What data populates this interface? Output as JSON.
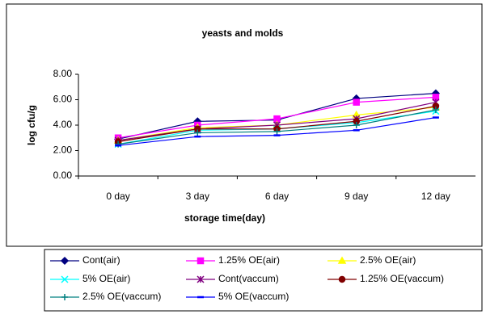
{
  "chart_data": {
    "type": "line",
    "title": "yeasts and molds",
    "x_label": "storage time(day)",
    "y_label": "log cfu/g",
    "categories": [
      "0 day",
      "3 day",
      "6 day",
      "9 day",
      "12 day"
    ],
    "ylim": [
      0,
      8
    ],
    "yticks": [
      {
        "value": 0,
        "label": "0.00"
      },
      {
        "value": 2,
        "label": "2.00"
      },
      {
        "value": 4,
        "label": "4.00"
      },
      {
        "value": 6,
        "label": "6.00"
      },
      {
        "value": 8,
        "label": "8.00"
      }
    ],
    "series": [
      {
        "name": "Cont(air)",
        "color": "#000080",
        "marker": "diamond",
        "values": [
          2.9,
          4.3,
          4.4,
          6.1,
          6.5
        ]
      },
      {
        "name": "1.25% OE(air)",
        "color": "#ff00ff",
        "marker": "square",
        "values": [
          3.0,
          4.0,
          4.5,
          5.8,
          6.2
        ]
      },
      {
        "name": "2.5% OE(air)",
        "color": "#ffff00",
        "marker": "triangle",
        "values": [
          2.8,
          3.8,
          4.0,
          4.8,
          5.4
        ]
      },
      {
        "name": "5% OE(air)",
        "color": "#00ffff",
        "marker": "x",
        "values": [
          2.5,
          3.6,
          3.7,
          4.2,
          5.1
        ]
      },
      {
        "name": "Cont(vaccum)",
        "color": "#800080",
        "marker": "star",
        "values": [
          2.8,
          3.7,
          4.0,
          4.5,
          5.8
        ]
      },
      {
        "name": "1.25% OE(vaccum)",
        "color": "#800000",
        "marker": "circle",
        "values": [
          2.7,
          3.7,
          3.7,
          4.3,
          5.5
        ]
      },
      {
        "name": "2.5% OE(vaccum)",
        "color": "#008080",
        "marker": "plus",
        "values": [
          2.5,
          3.4,
          3.5,
          4.0,
          5.2
        ]
      },
      {
        "name": "5% OE(vaccum)",
        "color": "#0000ff",
        "marker": "dash",
        "values": [
          2.4,
          3.1,
          3.2,
          3.6,
          4.6
        ]
      }
    ]
  }
}
